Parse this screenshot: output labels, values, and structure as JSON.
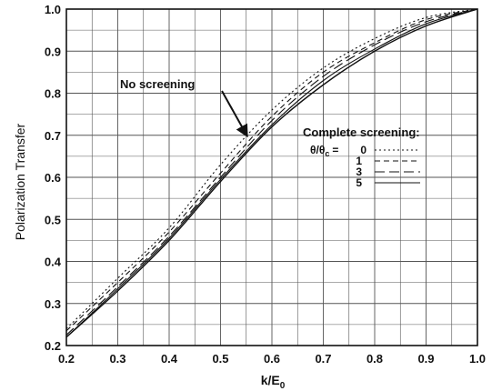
{
  "chart_data": {
    "type": "line",
    "xlabel": "k/E",
    "xlabel_sub": "0",
    "ylabel": "Polarization Transfer",
    "xlim": [
      0.2,
      1.0
    ],
    "ylim": [
      0.2,
      1.0
    ],
    "xticks": [
      "0.2",
      "0.3",
      "0.4",
      "0.5",
      "0.6",
      "0.7",
      "0.8",
      "0.9",
      "1.0"
    ],
    "yticks": [
      "0.2",
      "0.3",
      "0.4",
      "0.5",
      "0.6",
      "0.7",
      "0.8",
      "0.9",
      "1.0"
    ],
    "grid": true,
    "x": [
      0.2,
      0.3,
      0.4,
      0.5,
      0.6,
      0.7,
      0.8,
      0.9,
      1.0
    ],
    "series": [
      {
        "name": "No screening",
        "style": "solid",
        "values": [
          0.22,
          0.33,
          0.45,
          0.59,
          0.72,
          0.82,
          0.9,
          0.96,
          1.0
        ]
      },
      {
        "name": "0",
        "style": "dotted",
        "values": [
          0.24,
          0.36,
          0.48,
          0.63,
          0.76,
          0.86,
          0.93,
          0.98,
          1.0
        ]
      },
      {
        "name": "1",
        "style": "dashed",
        "values": [
          0.235,
          0.35,
          0.47,
          0.61,
          0.745,
          0.85,
          0.92,
          0.975,
          1.0
        ]
      },
      {
        "name": "3",
        "style": "longdash",
        "values": [
          0.225,
          0.34,
          0.46,
          0.6,
          0.735,
          0.84,
          0.915,
          0.97,
          1.0
        ]
      },
      {
        "name": "5",
        "style": "solid",
        "values": [
          0.22,
          0.335,
          0.455,
          0.595,
          0.725,
          0.83,
          0.905,
          0.965,
          1.0
        ]
      }
    ],
    "annotations": {
      "no_screening": "No screening",
      "complete_screening": "Complete screening:",
      "legend_prefix": "θ/θ",
      "legend_prefix_sub": "c",
      "legend_eq": "="
    }
  }
}
